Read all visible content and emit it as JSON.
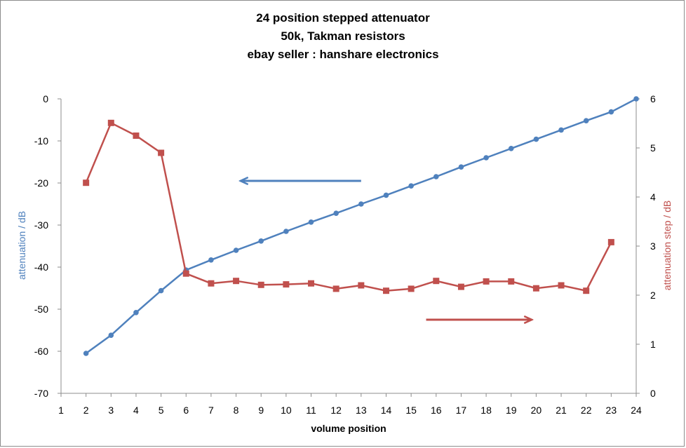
{
  "chart_data": {
    "type": "line",
    "title": [
      "24 position stepped attenuator",
      "50k, Takman resistors",
      "ebay seller : hanshare electronics"
    ],
    "xlabel": "volume position",
    "ylabel_left": "attenuation / dB",
    "ylabel_right": "attenuation step / dB",
    "xlim": [
      1,
      24
    ],
    "ylim_left": [
      -70,
      0
    ],
    "ylim_right": [
      0,
      6
    ],
    "x_ticks": [
      1,
      2,
      3,
      4,
      5,
      6,
      7,
      8,
      9,
      10,
      11,
      12,
      13,
      14,
      15,
      16,
      17,
      18,
      19,
      20,
      21,
      22,
      23,
      24
    ],
    "y_ticks_left": [
      0,
      -10,
      -20,
      -30,
      -40,
      -50,
      -60,
      -70
    ],
    "y_ticks_right": [
      6,
      5,
      4,
      3,
      2,
      1,
      0
    ],
    "grid": false,
    "legend": "none",
    "series": [
      {
        "axis": "left",
        "color": "#4f81bd",
        "marker": "circle",
        "x": [
          2,
          3,
          4,
          5,
          6,
          7,
          8,
          9,
          10,
          11,
          12,
          13,
          14,
          15,
          16,
          17,
          18,
          19,
          20,
          21,
          22,
          23,
          24
        ],
        "values": [
          -60.5,
          -56.2,
          -50.8,
          -45.6,
          -40.7,
          -38.3,
          -36.0,
          -33.8,
          -31.5,
          -29.3,
          -27.2,
          -25.0,
          -22.9,
          -20.7,
          -18.5,
          -16.2,
          -14.0,
          -11.8,
          -9.6,
          -7.4,
          -5.2,
          -3.1,
          0.0
        ]
      },
      {
        "axis": "right",
        "color": "#c0504d",
        "marker": "square",
        "x": [
          2,
          3,
          4,
          5,
          6,
          7,
          8,
          9,
          10,
          11,
          12,
          13,
          14,
          15,
          16,
          17,
          18,
          19,
          20,
          21,
          22,
          23
        ],
        "values": [
          4.29,
          5.51,
          5.25,
          4.9,
          2.44,
          2.24,
          2.29,
          2.21,
          2.22,
          2.24,
          2.13,
          2.2,
          2.09,
          2.13,
          2.29,
          2.17,
          2.28,
          2.28,
          2.14,
          2.2,
          2.09,
          3.08
        ]
      }
    ],
    "annotations": [
      {
        "type": "arrow",
        "direction": "left",
        "color": "#4f81bd",
        "x_from": 13,
        "x_to": 8.2,
        "y_axis": "left",
        "y": -19.5
      },
      {
        "type": "arrow",
        "direction": "right",
        "color": "#c0504d",
        "x_from": 15.6,
        "x_to": 19.8,
        "y_axis": "right",
        "y": 1.5
      }
    ]
  }
}
